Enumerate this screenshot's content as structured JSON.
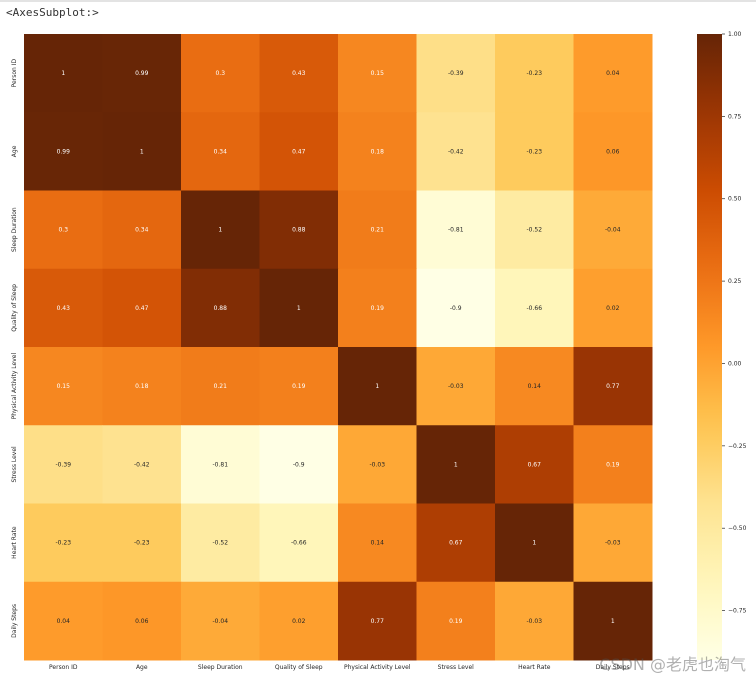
{
  "header": {
    "output_label": "<AxesSubplot:>"
  },
  "watermark": "CSDN @老虎也淘气",
  "chart_data": {
    "type": "heatmap",
    "title": "",
    "colormap": "YlOrBr",
    "categories": [
      "Person ID",
      "Age",
      "Sleep Duration",
      "Quality of Sleep",
      "Physical Activity Level",
      "Stress Level",
      "Heart Rate",
      "Daily Steps"
    ],
    "values": [
      [
        1,
        0.99,
        0.3,
        0.43,
        0.15,
        -0.39,
        -0.23,
        0.04
      ],
      [
        0.99,
        1,
        0.34,
        0.47,
        0.18,
        -0.42,
        -0.23,
        0.06
      ],
      [
        0.3,
        0.34,
        1,
        0.88,
        0.21,
        -0.81,
        -0.52,
        -0.04
      ],
      [
        0.43,
        0.47,
        0.88,
        1,
        0.19,
        -0.9,
        -0.66,
        0.02
      ],
      [
        0.15,
        0.18,
        0.21,
        0.19,
        1,
        -0.03,
        0.14,
        0.77
      ],
      [
        -0.39,
        -0.42,
        -0.81,
        -0.9,
        -0.03,
        1,
        0.67,
        0.19
      ],
      [
        -0.23,
        -0.23,
        -0.52,
        -0.66,
        0.14,
        0.67,
        1,
        -0.03
      ],
      [
        0.04,
        0.06,
        -0.04,
        0.02,
        0.77,
        0.19,
        -0.03,
        1
      ]
    ],
    "annotations": [
      [
        "1",
        "0.99",
        "0.3",
        "0.43",
        "0.15",
        "-0.39",
        "-0.23",
        "0.04"
      ],
      [
        "0.99",
        "1",
        "0.34",
        "0.47",
        "0.18",
        "-0.42",
        "-0.23",
        "0.06"
      ],
      [
        "0.3",
        "0.34",
        "1",
        "0.88",
        "0.21",
        "-0.81",
        "-0.52",
        "-0.04"
      ],
      [
        "0.43",
        "0.47",
        "0.88",
        "1",
        "0.19",
        "-0.9",
        "-0.66",
        "0.02"
      ],
      [
        "0.15",
        "0.18",
        "0.21",
        "0.19",
        "1",
        "-0.03",
        "0.14",
        "0.77"
      ],
      [
        "-0.39",
        "-0.42",
        "-0.81",
        "-0.9",
        "-0.03",
        "1",
        "0.67",
        "0.19"
      ],
      [
        "-0.23",
        "-0.23",
        "-0.52",
        "-0.66",
        "0.14",
        "0.67",
        "1",
        "-0.03"
      ],
      [
        "0.04",
        "0.06",
        "-0.04",
        "0.02",
        "0.77",
        "0.19",
        "-0.03",
        "1"
      ]
    ],
    "colorbar": {
      "range": [
        -0.9,
        1.0
      ],
      "ticks": [
        1.0,
        0.75,
        0.5,
        0.25,
        0.0,
        -0.25,
        -0.5,
        -0.75
      ],
      "tick_labels": [
        "1.00",
        "0.75",
        "0.50",
        "0.25",
        "0.00",
        "−0.25",
        "−0.50",
        "−0.75"
      ]
    },
    "xlabel": "",
    "ylabel": ""
  }
}
